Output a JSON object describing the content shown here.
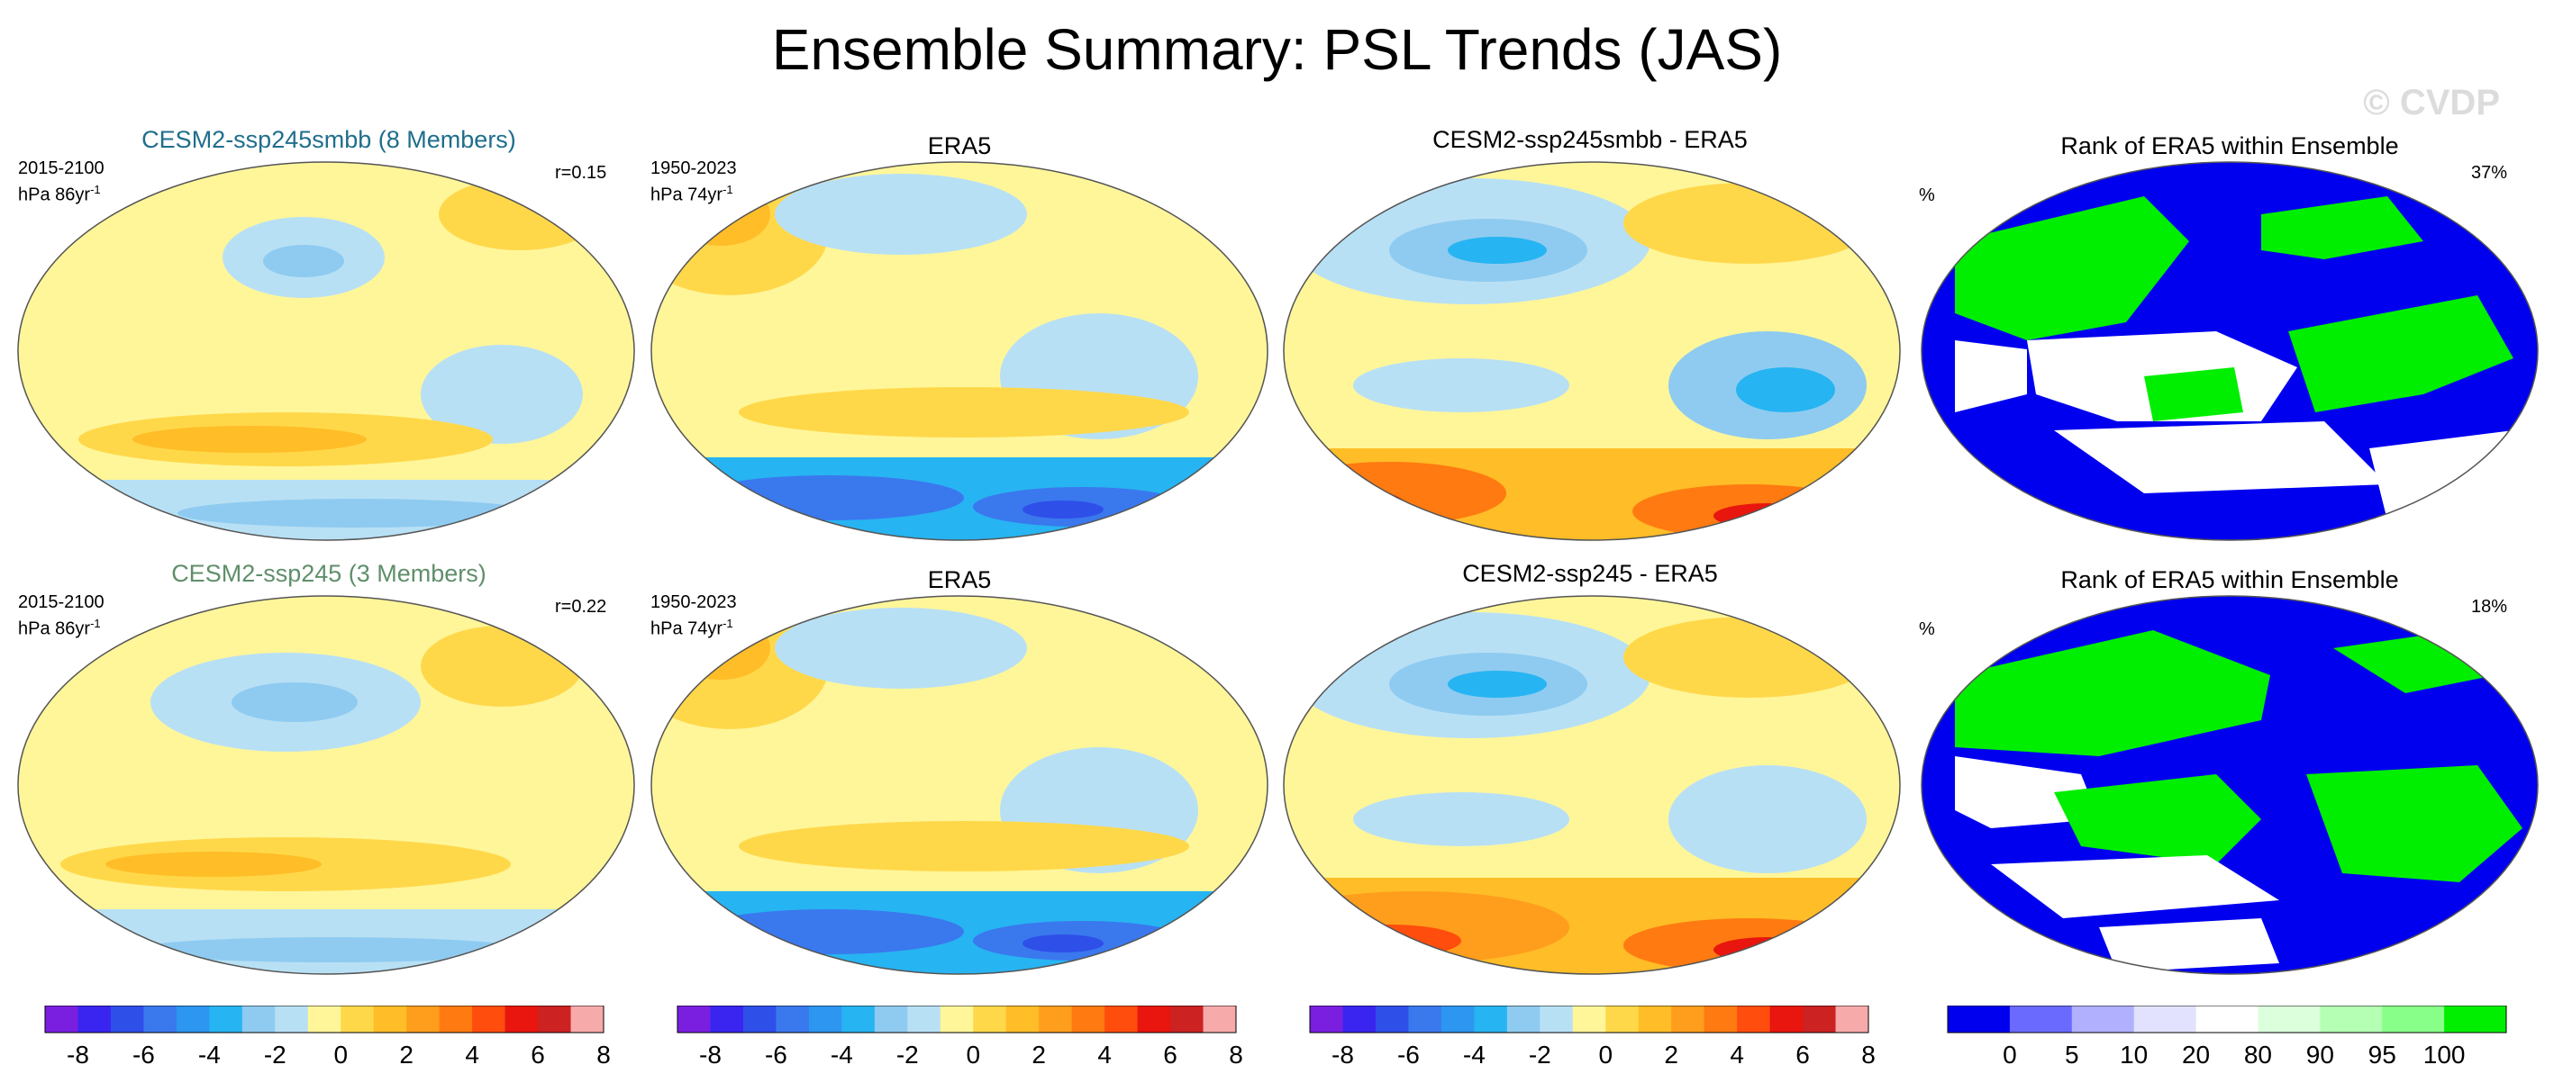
{
  "title": "Ensemble Summary: PSL Trends (JAS)",
  "watermark": "© CVDP",
  "rows": [
    {
      "model_title": "CESM2-ssp245smbb (8 Members)",
      "model_title_color": "#1f6e8c",
      "model_years": "2015-2100",
      "model_units": "hPa 86yr",
      "model_units_sup": "-1",
      "model_r": "r=0.15",
      "obs_title": "ERA5",
      "obs_years": "1950-2023",
      "obs_units": "hPa 74yr",
      "obs_units_sup": "-1",
      "diff_title": "CESM2-ssp245smbb - ERA5",
      "rank_title": "Rank of ERA5 within Ensemble",
      "rank_unit": "%",
      "rank_pct": "37%"
    },
    {
      "model_title": "CESM2-ssp245 (3 Members)",
      "model_title_color": "#5f8f6a",
      "model_years": "2015-2100",
      "model_units": "hPa 86yr",
      "model_units_sup": "-1",
      "model_r": "r=0.22",
      "obs_title": "ERA5",
      "obs_years": "1950-2023",
      "obs_units": "hPa 74yr",
      "obs_units_sup": "-1",
      "diff_title": "CESM2-ssp245 - ERA5",
      "rank_title": "Rank of ERA5 within Ensemble",
      "rank_unit": "%",
      "rank_pct": "18%"
    }
  ],
  "colorbar_trend": {
    "colors": [
      "#7a1fe0",
      "#3a25f0",
      "#2e4fe8",
      "#3a78ee",
      "#2d96f0",
      "#27b4f2",
      "#8fcbf0",
      "#b8e0f5",
      "#fff69a",
      "#ffd84a",
      "#ffbd27",
      "#ff9d1c",
      "#ff7a10",
      "#ff4d0d",
      "#e8160e",
      "#cc2222",
      "#f7aaaa"
    ],
    "labels": [
      "-8",
      "-6",
      "-4",
      "-2",
      "0",
      "2",
      "4",
      "6",
      "8"
    ]
  },
  "colorbar_rank": {
    "colors": [
      "#0000ee",
      "#6a6aff",
      "#b0b0ff",
      "#e2e2ff",
      "#ffffff",
      "#dcffdc",
      "#b4ffb4",
      "#88ff88",
      "#00ee00"
    ],
    "labels": [
      "0",
      "5",
      "10",
      "20",
      "80",
      "90",
      "95",
      "100"
    ]
  }
}
